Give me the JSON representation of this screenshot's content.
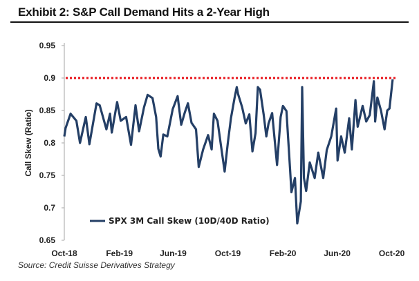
{
  "title": "Exhibit 2: S&P Call Demand Hits a 2-Year High",
  "source": "Source: Credit Suisse Derivatives Strategy",
  "chart_data": {
    "type": "line",
    "title": "",
    "ylabel": "Call Skew (Ratio)",
    "xlabel": "",
    "ylim": [
      0.65,
      0.95
    ],
    "yticks": [
      "0.65",
      "0.7",
      "0.75",
      "0.8",
      "0.85",
      "0.9",
      "0.95"
    ],
    "xlim": [
      "2018-10-01",
      "2020-10-14"
    ],
    "xticks": [
      {
        "date": "2018-10-01",
        "label": "Oct-18"
      },
      {
        "date": "2019-02-01",
        "label": "Feb-19"
      },
      {
        "date": "2019-06-01",
        "label": "Jun-19"
      },
      {
        "date": "2019-10-01",
        "label": "Oct-19"
      },
      {
        "date": "2020-02-01",
        "label": "Feb-20"
      },
      {
        "date": "2020-06-01",
        "label": "Jun-20"
      },
      {
        "date": "2020-10-01",
        "label": "Oct-20"
      }
    ],
    "grid": false,
    "legend_placement": "bottom-left",
    "reference_line": {
      "y": 0.9,
      "color": "#e8141b",
      "style": "dotted"
    },
    "series": [
      {
        "name": "SPX 3M Call Skew (10D/40D Ratio)",
        "color": "#243f66",
        "x": [
          "2018-10-01",
          "2018-10-04",
          "2018-10-15",
          "2018-10-28",
          "2018-11-05",
          "2018-11-18",
          "2018-11-26",
          "2018-12-12",
          "2018-12-19",
          "2019-01-03",
          "2019-01-11",
          "2019-01-15",
          "2019-01-27",
          "2019-02-04",
          "2019-02-16",
          "2019-02-27",
          "2019-03-09",
          "2019-03-17",
          "2019-03-28",
          "2019-04-05",
          "2019-04-16",
          "2019-04-24",
          "2019-04-29",
          "2019-05-04",
          "2019-05-10",
          "2019-05-19",
          "2019-05-31",
          "2019-06-11",
          "2019-06-19",
          "2019-06-27",
          "2019-07-04",
          "2019-07-12",
          "2019-07-22",
          "2019-07-28",
          "2019-08-07",
          "2019-08-18",
          "2019-08-26",
          "2019-08-31",
          "2019-09-08",
          "2019-09-16",
          "2019-09-24",
          "2019-10-01",
          "2019-10-08",
          "2019-10-16",
          "2019-10-21",
          "2019-10-24",
          "2019-11-02",
          "2019-11-10",
          "2019-11-18",
          "2019-11-25",
          "2019-12-02",
          "2019-12-07",
          "2019-12-12",
          "2019-12-20",
          "2019-12-26",
          "2019-12-31",
          "2020-01-08",
          "2020-01-19",
          "2020-01-27",
          "2020-02-01",
          "2020-02-09",
          "2020-02-17",
          "2020-02-20",
          "2020-02-28",
          "2020-03-04",
          "2020-03-12",
          "2020-03-15",
          "2020-03-19",
          "2020-03-24",
          "2020-04-01",
          "2020-04-12",
          "2020-04-20",
          "2020-05-01",
          "2020-05-09",
          "2020-05-19",
          "2020-05-30",
          "2020-06-02",
          "2020-06-10",
          "2020-06-18",
          "2020-06-28",
          "2020-07-04",
          "2020-07-12",
          "2020-07-17",
          "2020-07-28",
          "2020-08-05",
          "2020-08-13",
          "2020-08-22",
          "2020-08-25",
          "2020-08-30",
          "2020-09-07",
          "2020-09-15",
          "2020-09-21",
          "2020-09-26",
          "2020-10-03"
        ],
        "values": [
          0.81,
          0.823,
          0.845,
          0.834,
          0.8,
          0.84,
          0.798,
          0.861,
          0.858,
          0.821,
          0.845,
          0.816,
          0.863,
          0.834,
          0.84,
          0.797,
          0.858,
          0.818,
          0.855,
          0.874,
          0.869,
          0.84,
          0.791,
          0.779,
          0.813,
          0.81,
          0.852,
          0.872,
          0.828,
          0.847,
          0.861,
          0.831,
          0.821,
          0.763,
          0.79,
          0.812,
          0.79,
          0.845,
          0.834,
          0.795,
          0.756,
          0.8,
          0.838,
          0.869,
          0.886,
          0.875,
          0.855,
          0.83,
          0.844,
          0.787,
          0.815,
          0.886,
          0.882,
          0.844,
          0.81,
          0.83,
          0.846,
          0.766,
          0.84,
          0.857,
          0.849,
          0.76,
          0.724,
          0.746,
          0.676,
          0.71,
          0.886,
          0.746,
          0.726,
          0.77,
          0.746,
          0.785,
          0.746,
          0.789,
          0.81,
          0.853,
          0.773,
          0.81,
          0.785,
          0.838,
          0.79,
          0.866,
          0.825,
          0.857,
          0.833,
          0.843,
          0.895,
          0.833,
          0.87,
          0.85,
          0.821,
          0.85,
          0.853,
          0.898
        ]
      }
    ]
  }
}
